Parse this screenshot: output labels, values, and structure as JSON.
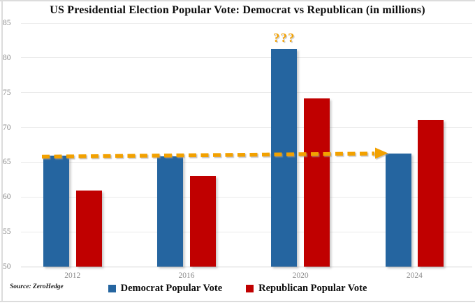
{
  "chart": {
    "source_label": "Source: ZeroHedge"
  },
  "chart_data": {
    "type": "bar",
    "title": "US Presidential Election Popular Vote: Democrat vs Republican (in millions)",
    "categories": [
      "2012",
      "2016",
      "2020",
      "2024"
    ],
    "series": [
      {
        "name": "Democrat Popular Vote",
        "color": "#2565a0",
        "values": [
          65.9,
          65.8,
          81.3,
          66.2
        ]
      },
      {
        "name": "Republican Popular Vote",
        "color": "#c00000",
        "values": [
          60.9,
          63.0,
          74.2,
          71.1
        ]
      }
    ],
    "ylim": [
      50,
      85
    ],
    "yticks": [
      85,
      80,
      75,
      70,
      65,
      60,
      55,
      50
    ],
    "grid": true,
    "legend_position": "bottom",
    "annotations": [
      {
        "type": "text",
        "text": "???",
        "target": "2020-democrat-bar",
        "color": "#f2a104"
      },
      {
        "type": "dashed-arrow",
        "from_category": "2012",
        "to_category": "2024",
        "y_level": 66,
        "color": "#f2a104",
        "meaning": "democrat popular vote trend excluding 2020 outlier"
      }
    ]
  }
}
